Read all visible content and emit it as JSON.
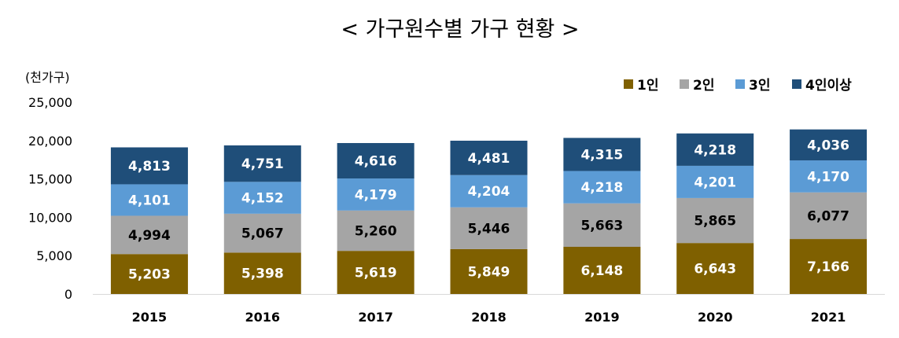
{
  "chart_data": {
    "type": "bar",
    "stacked": true,
    "title": "< 가구원수별 가구 현황 >",
    "unit_label": "(천가구)",
    "categories": [
      "2015",
      "2016",
      "2017",
      "2018",
      "2019",
      "2020",
      "2021"
    ],
    "series": [
      {
        "name": "1인",
        "color": "#7F6000",
        "values": [
          5203,
          5398,
          5619,
          5849,
          6148,
          6643,
          7166
        ],
        "labels": [
          "5,203",
          "5,398",
          "5,619",
          "5,849",
          "6,148",
          "6,643",
          "7,166"
        ]
      },
      {
        "name": "2인",
        "color": "#A5A5A5",
        "values": [
          4994,
          5067,
          5260,
          5446,
          5663,
          5865,
          6077
        ],
        "labels": [
          "4,994",
          "5,067",
          "5,260",
          "5,446",
          "5,663",
          "5,865",
          "6,077"
        ]
      },
      {
        "name": "3인",
        "color": "#5B9BD5",
        "values": [
          4101,
          4152,
          4179,
          4204,
          4218,
          4201,
          4170
        ],
        "labels": [
          "4,101",
          "4,152",
          "4,179",
          "4,204",
          "4,218",
          "4,201",
          "4,170"
        ]
      },
      {
        "name": "4인이상",
        "color": "#1F4E79",
        "values": [
          4813,
          4751,
          4616,
          4481,
          4315,
          4218,
          4036
        ],
        "labels": [
          "4,813",
          "4,751",
          "4,616",
          "4,481",
          "4,315",
          "4,218",
          "4,036"
        ]
      }
    ],
    "ylim": [
      0,
      25000
    ],
    "yticks": [
      0,
      5000,
      10000,
      15000,
      20000,
      25000
    ],
    "ytick_labels": [
      "0",
      "5,000",
      "10,000",
      "15,000",
      "20,000",
      "25,000"
    ],
    "legend_position": "top-right",
    "grid": false
  }
}
